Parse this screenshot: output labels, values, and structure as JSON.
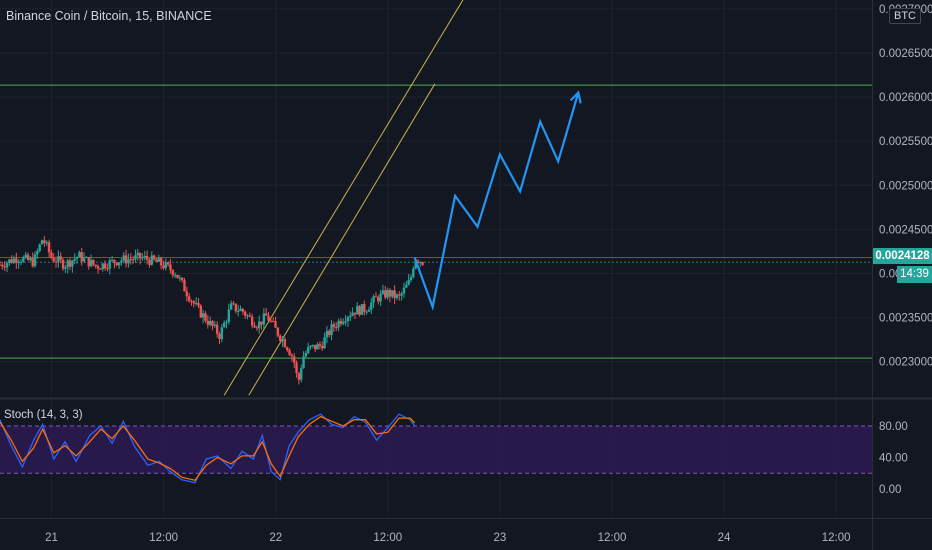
{
  "title": "Binance Coin / Bitcoin, 15, BINANCE",
  "currency": "BTC",
  "last_price": "0.0024128",
  "countdown": "14:39",
  "indicator_label": "Stoch (14, 3, 3)",
  "colors": {
    "background": "#131722",
    "up": "#26a69a",
    "down": "#ef5350",
    "horizontal_line": "#4caf50",
    "channel": "#c9b44a",
    "projection": "#2196f3",
    "stoch_k": "#2962ff",
    "stoch_d": "#ff6d00",
    "stoch_band": "#2a1a4f"
  },
  "chart_data": [
    {
      "type": "candlestick",
      "symbol": "BNBBTC",
      "interval": "15",
      "exchange": "BINANCE",
      "x_ticks": [
        "21",
        "12:00",
        "22",
        "12:00",
        "23",
        "12:00",
        "24",
        "12:00"
      ],
      "y_ticks": [
        "0.0023000",
        "0.0023500",
        "0.0024000",
        "0.0024500",
        "0.0025000",
        "0.0025500",
        "0.0026000",
        "0.0026500",
        "0.0027000"
      ],
      "y_range": [
        0.00226,
        0.00271
      ],
      "x_range_days": [
        20.77,
        24.66
      ],
      "horizontal_lines": [
        0.0026135,
        0.002304
      ],
      "last_price_line": 0.0024128,
      "channel": {
        "lower": [
          [
            21.88,
            0.002262
          ],
          [
            22.71,
            0.002615
          ]
        ],
        "upper": [
          [
            21.77,
            0.002262
          ],
          [
            22.93,
            0.00275
          ]
        ]
      },
      "projection_path": [
        [
          22.62,
          0.002418
        ],
        [
          22.7,
          0.002362
        ],
        [
          22.8,
          0.002488
        ],
        [
          22.9,
          0.002453
        ],
        [
          23.0,
          0.002535
        ],
        [
          23.09,
          0.002493
        ],
        [
          23.18,
          0.002572
        ],
        [
          23.26,
          0.002527
        ],
        [
          23.35,
          0.002605
        ]
      ],
      "price_series": [
        [
          20.77,
          0.00241
        ],
        [
          20.85,
          0.002418
        ],
        [
          20.92,
          0.002413
        ],
        [
          20.96,
          0.00244
        ],
        [
          21.0,
          0.002418
        ],
        [
          21.06,
          0.00241
        ],
        [
          21.12,
          0.00242
        ],
        [
          21.2,
          0.002408
        ],
        [
          21.3,
          0.002415
        ],
        [
          21.4,
          0.002418
        ],
        [
          21.48,
          0.002412
        ],
        [
          21.55,
          0.002402
        ],
        [
          21.6,
          0.00238
        ],
        [
          21.65,
          0.00236
        ],
        [
          21.7,
          0.002345
        ],
        [
          21.75,
          0.00233
        ],
        [
          21.8,
          0.002362
        ],
        [
          21.85,
          0.002358
        ],
        [
          21.88,
          0.00235
        ],
        [
          21.92,
          0.002342
        ],
        [
          21.96,
          0.002352
        ],
        [
          22.0,
          0.002336
        ],
        [
          22.05,
          0.002318
        ],
        [
          22.08,
          0.002303
        ],
        [
          22.1,
          0.002275
        ],
        [
          22.12,
          0.002305
        ],
        [
          22.15,
          0.002315
        ],
        [
          22.2,
          0.002318
        ],
        [
          22.25,
          0.002338
        ],
        [
          22.3,
          0.00235
        ],
        [
          22.35,
          0.002358
        ],
        [
          22.4,
          0.00236
        ],
        [
          22.45,
          0.002372
        ],
        [
          22.5,
          0.002378
        ],
        [
          22.55,
          0.002372
        ],
        [
          22.6,
          0.002392
        ],
        [
          22.62,
          0.002418
        ],
        [
          22.66,
          0.002413
        ]
      ]
    },
    {
      "type": "line",
      "name": "Stoch (14, 3, 3)",
      "y_ticks": [
        "80.00",
        "40.00",
        "0.00"
      ],
      "y_range": [
        0,
        100
      ],
      "band": [
        20,
        80
      ],
      "series": [
        {
          "values": [
            [
              20.77,
              88
            ],
            [
              20.82,
              55
            ],
            [
              20.87,
              28
            ],
            [
              20.92,
              62
            ],
            [
              20.96,
              82
            ],
            [
              21.01,
              38
            ],
            [
              21.06,
              60
            ],
            [
              21.11,
              35
            ],
            [
              21.17,
              68
            ],
            [
              21.22,
              80
            ],
            [
              21.27,
              58
            ],
            [
              21.32,
              86
            ],
            [
              21.37,
              54
            ],
            [
              21.43,
              30
            ],
            [
              21.48,
              35
            ],
            [
              21.53,
              22
            ],
            [
              21.58,
              12
            ],
            [
              21.64,
              8
            ],
            [
              21.69,
              38
            ],
            [
              21.74,
              42
            ],
            [
              21.8,
              26
            ],
            [
              21.85,
              48
            ],
            [
              21.9,
              38
            ],
            [
              21.94,
              68
            ],
            [
              21.98,
              22
            ],
            [
              22.02,
              12
            ],
            [
              22.06,
              55
            ],
            [
              22.1,
              72
            ],
            [
              22.15,
              88
            ],
            [
              22.2,
              95
            ],
            [
              22.25,
              82
            ],
            [
              22.3,
              78
            ],
            [
              22.35,
              92
            ],
            [
              22.4,
              85
            ],
            [
              22.45,
              62
            ],
            [
              22.5,
              78
            ],
            [
              22.55,
              95
            ],
            [
              22.6,
              88
            ],
            [
              22.62,
              80
            ]
          ]
        },
        {
          "values": [
            [
              20.77,
              85
            ],
            [
              20.82,
              62
            ],
            [
              20.87,
              35
            ],
            [
              20.92,
              52
            ],
            [
              20.96,
              76
            ],
            [
              21.01,
              46
            ],
            [
              21.06,
              55
            ],
            [
              21.11,
              42
            ],
            [
              21.17,
              60
            ],
            [
              21.22,
              76
            ],
            [
              21.27,
              64
            ],
            [
              21.32,
              80
            ],
            [
              21.37,
              62
            ],
            [
              21.43,
              38
            ],
            [
              21.48,
              33
            ],
            [
              21.53,
              26
            ],
            [
              21.58,
              15
            ],
            [
              21.64,
              11
            ],
            [
              21.69,
              30
            ],
            [
              21.74,
              40
            ],
            [
              21.8,
              32
            ],
            [
              21.85,
              42
            ],
            [
              21.9,
              42
            ],
            [
              21.94,
              60
            ],
            [
              21.98,
              32
            ],
            [
              22.02,
              16
            ],
            [
              22.06,
              42
            ],
            [
              22.1,
              66
            ],
            [
              22.15,
              82
            ],
            [
              22.2,
              92
            ],
            [
              22.25,
              86
            ],
            [
              22.3,
              80
            ],
            [
              22.35,
              88
            ],
            [
              22.4,
              88
            ],
            [
              22.45,
              70
            ],
            [
              22.5,
              72
            ],
            [
              22.55,
              90
            ],
            [
              22.6,
              90
            ],
            [
              22.62,
              84
            ]
          ]
        }
      ]
    }
  ]
}
